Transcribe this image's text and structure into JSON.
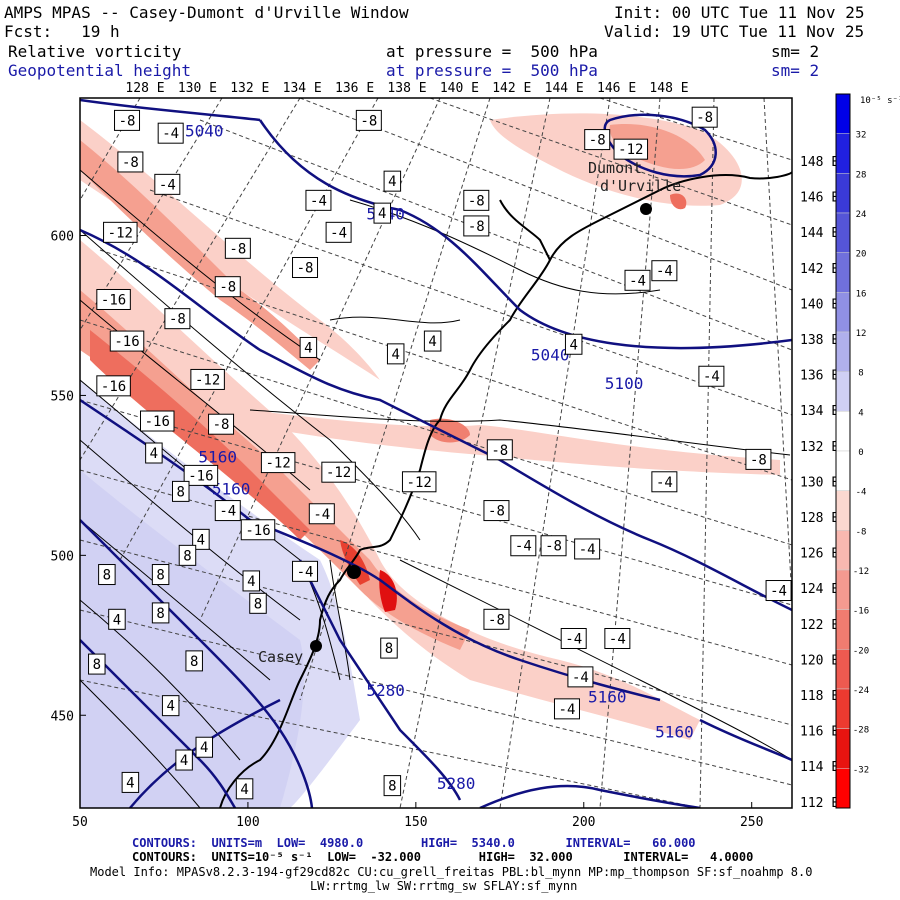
{
  "header": {
    "title": "AMPS MPAS -- Casey-Dumont d'Urville Window",
    "init": "Init: 00 UTC Tue 11 Nov 25",
    "fcst": "Fcst:   19 h",
    "valid": "Valid: 19 UTC Tue 11 Nov 25",
    "field1_name": "Relative vorticity",
    "field1_level": "at pressure =  500 hPa",
    "field1_sm": "sm= 2",
    "field2_name": "Geopotential height",
    "field2_level": "at pressure =  500 hPa",
    "field2_sm": "sm= 2"
  },
  "footer": {
    "contours1": "CONTOURS:  UNITS=m  LOW=  4980.0        HIGH=  5340.0       INTERVAL=   60.000",
    "contours2": "CONTOURS:  UNITS=10⁻⁵ s⁻¹  LOW=  -32.000        HIGH=  32.000       INTERVAL=   4.0000",
    "model_info": "Model Info: MPASv8.2.3-194-gf29cd82c CU:cu_grell_freitas PBL:bl_mynn MP:mp_thompson SF:sf_noahmp 8.0",
    "model_info2": "LW:rrtmg_lw SW:rrtmg_sw SFLAY:sf_mynn"
  },
  "places": {
    "casey": "Casey",
    "dumont": "Dumont\nd'Urville"
  },
  "colorbar": {
    "unit_label": "10⁻⁵ s⁻¹",
    "tick_labels": [
      "32",
      "28",
      "24",
      "20",
      "16",
      "12",
      "8",
      "4",
      "0",
      "-4",
      "-8",
      "-12",
      "-16",
      "-20",
      "-24",
      "-28",
      "-32"
    ],
    "colors": [
      "#0000e8",
      "#2020e0",
      "#3a3ad8",
      "#5555d8",
      "#7070dc",
      "#9090e4",
      "#b0b0ec",
      "#d0d0f4",
      "#ffffff",
      "#ffffff",
      "#fbd8d0",
      "#f8b8b0",
      "#f49a90",
      "#f07c70",
      "#ee5a50",
      "#ec3a30",
      "#e81410",
      "#ff0000"
    ]
  },
  "chart_data": {
    "type": "heatmap",
    "x_ticks": [
      "50",
      "100",
      "150",
      "200",
      "250"
    ],
    "y_ticks": [
      "450",
      "500",
      "550",
      "600"
    ],
    "x_range": [
      50,
      262
    ],
    "y_range": [
      421,
      643
    ],
    "top_lon_labels": [
      "128 E",
      "130 E",
      "132 E",
      "134 E",
      "136 E",
      "138 E",
      "140 E",
      "142 E",
      "144 E",
      "146 E",
      "148 E"
    ],
    "right_lat_labels": [
      "148 E",
      "146 E",
      "144 E",
      "142 E",
      "140 E",
      "138 E",
      "136 E",
      "134 E",
      "132 E",
      "130 E",
      "128 E",
      "126 E",
      "124 E",
      "122 E",
      "120 E",
      "118 E",
      "116 E",
      "114 E",
      "112 E"
    ],
    "height_labels": [
      {
        "text": "5040",
        "x": 87,
        "y": 631
      },
      {
        "text": "5040",
        "x": 141,
        "y": 605
      },
      {
        "text": "5040",
        "x": 190,
        "y": 561
      },
      {
        "text": "5100",
        "x": 212,
        "y": 552
      },
      {
        "text": "5160",
        "x": 91,
        "y": 529
      },
      {
        "text": "5160",
        "x": 95,
        "y": 519
      },
      {
        "text": "5160",
        "x": 207,
        "y": 454
      },
      {
        "text": "5160",
        "x": 227,
        "y": 443
      },
      {
        "text": "5280",
        "x": 141,
        "y": 456
      },
      {
        "text": "5280",
        "x": 162,
        "y": 427
      }
    ],
    "vorticity_labels": [
      {
        "text": "-8",
        "x": 64,
        "y": 636
      },
      {
        "text": "-4",
        "x": 77,
        "y": 632
      },
      {
        "text": "-8",
        "x": 65,
        "y": 623
      },
      {
        "text": "-4",
        "x": 76,
        "y": 616
      },
      {
        "text": "-12",
        "x": 62,
        "y": 601
      },
      {
        "text": "-8",
        "x": 94,
        "y": 584
      },
      {
        "text": "-16",
        "x": 60,
        "y": 580
      },
      {
        "text": "-8",
        "x": 79,
        "y": 574
      },
      {
        "text": "-16",
        "x": 64,
        "y": 567
      },
      {
        "text": "-12",
        "x": 88,
        "y": 555
      },
      {
        "text": "-16",
        "x": 60,
        "y": 553
      },
      {
        "text": "-16",
        "x": 73,
        "y": 542
      },
      {
        "text": "-8",
        "x": 92,
        "y": 541
      },
      {
        "text": "-16",
        "x": 86,
        "y": 525
      },
      {
        "text": "-12",
        "x": 109,
        "y": 529
      },
      {
        "text": "-12",
        "x": 127,
        "y": 526
      },
      {
        "text": "-4",
        "x": 94,
        "y": 514
      },
      {
        "text": "-16",
        "x": 103,
        "y": 508
      },
      {
        "text": "-4",
        "x": 122,
        "y": 513
      },
      {
        "text": "-12",
        "x": 151,
        "y": 523
      },
      {
        "text": "-8",
        "x": 117,
        "y": 590
      },
      {
        "text": "-8",
        "x": 136,
        "y": 636
      },
      {
        "text": "-4",
        "x": 121,
        "y": 611
      },
      {
        "text": "-4",
        "x": 127,
        "y": 601
      },
      {
        "text": "-8",
        "x": 97,
        "y": 596
      },
      {
        "text": "-4",
        "x": 117,
        "y": 495
      },
      {
        "text": "-8",
        "x": 175,
        "y": 533
      },
      {
        "text": "-8",
        "x": 174,
        "y": 514
      },
      {
        "text": "-4",
        "x": 182,
        "y": 503
      },
      {
        "text": "-8",
        "x": 191,
        "y": 503
      },
      {
        "text": "-4",
        "x": 201,
        "y": 502
      },
      {
        "text": "-8",
        "x": 174,
        "y": 480
      },
      {
        "text": "-4",
        "x": 197,
        "y": 474
      },
      {
        "text": "-4",
        "x": 210,
        "y": 474
      },
      {
        "text": "-4",
        "x": 199,
        "y": 462
      },
      {
        "text": "-4",
        "x": 195,
        "y": 452
      },
      {
        "text": "-8",
        "x": 168,
        "y": 611
      },
      {
        "text": "-8",
        "x": 168,
        "y": 603
      },
      {
        "text": "-8",
        "x": 204,
        "y": 630
      },
      {
        "text": "-12",
        "x": 214,
        "y": 627
      },
      {
        "text": "-8",
        "x": 236,
        "y": 637
      },
      {
        "text": "-4",
        "x": 216,
        "y": 586
      },
      {
        "text": "-4",
        "x": 224,
        "y": 589
      },
      {
        "text": "-4",
        "x": 238,
        "y": 556
      },
      {
        "text": "-8",
        "x": 252,
        "y": 530
      },
      {
        "text": "-4",
        "x": 224,
        "y": 523
      },
      {
        "text": "-4",
        "x": 258,
        "y": 489
      },
      {
        "text": "4",
        "x": 118,
        "y": 565
      },
      {
        "text": "4",
        "x": 144,
        "y": 563
      },
      {
        "text": "4",
        "x": 155,
        "y": 567
      },
      {
        "text": "4",
        "x": 197,
        "y": 566
      },
      {
        "text": "4",
        "x": 143,
        "y": 617
      },
      {
        "text": "4",
        "x": 140,
        "y": 607
      },
      {
        "text": "8",
        "x": 142,
        "y": 471
      },
      {
        "text": "4",
        "x": 72,
        "y": 532
      },
      {
        "text": "8",
        "x": 80,
        "y": 520
      },
      {
        "text": "4",
        "x": 86,
        "y": 505
      },
      {
        "text": "8",
        "x": 82,
        "y": 500
      },
      {
        "text": "8",
        "x": 58,
        "y": 494
      },
      {
        "text": "8",
        "x": 74,
        "y": 494
      },
      {
        "text": "4",
        "x": 101,
        "y": 492
      },
      {
        "text": "8",
        "x": 103,
        "y": 485
      },
      {
        "text": "4",
        "x": 61,
        "y": 480
      },
      {
        "text": "8",
        "x": 74,
        "y": 482
      },
      {
        "text": "8",
        "x": 84,
        "y": 467
      },
      {
        "text": "8",
        "x": 55,
        "y": 466
      },
      {
        "text": "4",
        "x": 77,
        "y": 453
      },
      {
        "text": "4",
        "x": 81,
        "y": 436
      },
      {
        "text": "4",
        "x": 87,
        "y": 440
      },
      {
        "text": "4",
        "x": 65,
        "y": 429
      },
      {
        "text": "4",
        "x": 99,
        "y": 427
      },
      {
        "text": "8",
        "x": 143,
        "y": 428
      }
    ]
  }
}
